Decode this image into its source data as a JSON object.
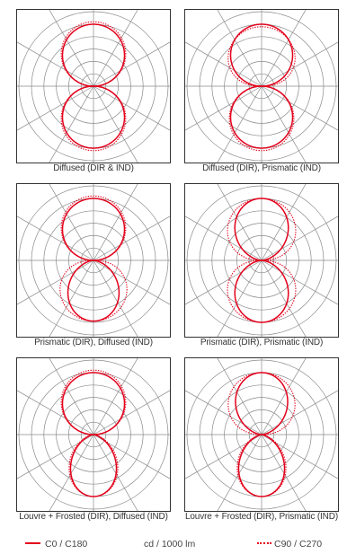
{
  "chart_data": [
    {
      "type": "polar",
      "caption": "Diffused (DIR & IND)",
      "series": [
        {
          "key": "c0_c180",
          "up": {
            "amp": 1.0,
            "exp": 1.0
          },
          "down": {
            "amp": 1.0,
            "exp": 1.0
          }
        },
        {
          "key": "c90_c270",
          "up": {
            "amp": 1.04,
            "exp": 1.0
          },
          "down": {
            "amp": 1.04,
            "exp": 1.0
          }
        }
      ]
    },
    {
      "type": "polar",
      "caption": "Diffused (DIR), Prismatic (IND)",
      "series": [
        {
          "key": "c0_c180",
          "up": {
            "amp": 1.0,
            "exp": 1.0
          },
          "down": {
            "amp": 1.0,
            "exp": 1.0
          }
        },
        {
          "key": "c90_c270",
          "up": {
            "amp": 0.96,
            "exp": 0.7
          },
          "down": {
            "amp": 1.04,
            "exp": 1.0
          }
        }
      ]
    },
    {
      "type": "polar",
      "caption": "Prismatic (DIR), Diffused (IND)",
      "series": [
        {
          "key": "c0_c180",
          "up": {
            "amp": 1.0,
            "exp": 1.0
          },
          "down": {
            "amp": 0.98,
            "exp": 1.6
          }
        },
        {
          "key": "c90_c270",
          "up": {
            "amp": 1.04,
            "exp": 1.0
          },
          "down": {
            "amp": 0.98,
            "exp": 0.75
          }
        }
      ]
    },
    {
      "type": "polar",
      "caption": "Prismatic (DIR), Prismatic (IND)",
      "series": [
        {
          "key": "c0_c180",
          "up": {
            "amp": 1.0,
            "exp": 1.5
          },
          "down": {
            "amp": 1.0,
            "exp": 1.5
          }
        },
        {
          "key": "c90_c270",
          "up": {
            "amp": 1.0,
            "exp": 0.75
          },
          "down": {
            "amp": 1.0,
            "exp": 0.75
          }
        }
      ]
    },
    {
      "type": "polar",
      "caption": "Louvre + Frosted (DIR), Diffused (IND)",
      "series": [
        {
          "key": "c0_c180",
          "up": {
            "amp": 1.0,
            "exp": 1.0
          },
          "down": {
            "amp": 1.0,
            "exp": 2.2
          }
        },
        {
          "key": "c90_c270",
          "up": {
            "amp": 1.04,
            "exp": 1.0
          },
          "down": {
            "amp": 1.0,
            "exp": 1.9
          }
        }
      ]
    },
    {
      "type": "polar",
      "caption": "Louvre + Frosted (DIR), Prismatic (IND)",
      "series": [
        {
          "key": "c0_c180",
          "up": {
            "amp": 1.0,
            "exp": 1.6
          },
          "down": {
            "amp": 1.0,
            "exp": 2.2
          }
        },
        {
          "key": "c90_c270",
          "up": {
            "amp": 1.0,
            "exp": 0.8
          },
          "down": {
            "amp": 1.0,
            "exp": 1.9
          }
        }
      ]
    }
  ],
  "legend": {
    "c0_label": "C0 / C180",
    "unit_label": "cd / 1000 lm",
    "c90_label": "C90 / C270"
  },
  "colors": {
    "curve": "#e3001b",
    "grid": "#8a8a8a",
    "frame": "#333333",
    "text": "#333333"
  }
}
